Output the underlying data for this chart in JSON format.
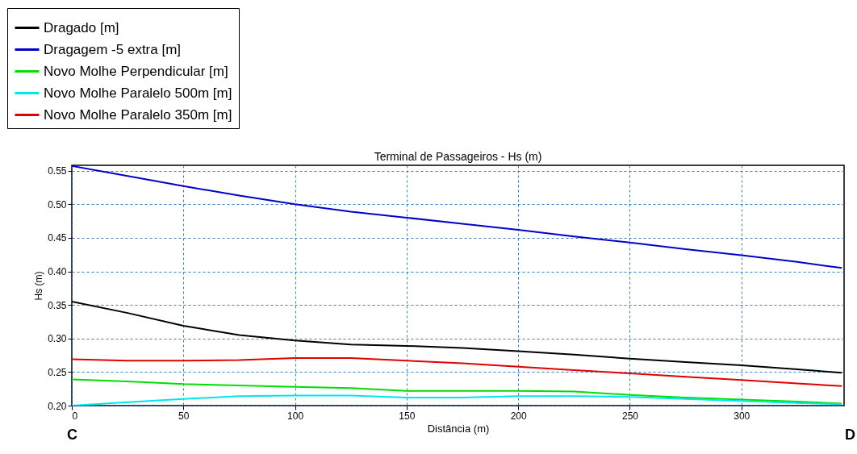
{
  "chart_data": {
    "type": "line",
    "title": "Terminal de Passageiros - Hs (m)",
    "xlabel": "Distância (m)",
    "ylabel": "Hs (m)",
    "x": [
      0,
      25,
      50,
      75,
      100,
      125,
      150,
      175,
      200,
      225,
      250,
      275,
      300,
      325,
      345
    ],
    "series": [
      {
        "name": "Dragado [m]",
        "color": "#000000",
        "values": [
          0.355,
          0.338,
          0.319,
          0.305,
          0.297,
          0.291,
          0.289,
          0.286,
          0.281,
          0.276,
          0.27,
          0.265,
          0.26,
          0.254,
          0.249
        ]
      },
      {
        "name": "Dragagem -5 extra [m]",
        "color": "#0000cc",
        "values": [
          0.557,
          0.542,
          0.527,
          0.513,
          0.5,
          0.489,
          0.48,
          0.471,
          0.462,
          0.452,
          0.443,
          0.433,
          0.424,
          0.414,
          0.405
        ]
      },
      {
        "name": "Novo Molhe Perpendicular [m]",
        "color": "#00dd00",
        "values": [
          0.239,
          0.236,
          0.232,
          0.23,
          0.228,
          0.226,
          0.222,
          0.222,
          0.222,
          0.221,
          0.216,
          0.212,
          0.209,
          0.206,
          0.203
        ]
      },
      {
        "name": "Novo Molhe Paralelo 500m [m]",
        "color": "#00e5ee",
        "values": [
          0.2,
          0.205,
          0.21,
          0.214,
          0.215,
          0.215,
          0.212,
          0.212,
          0.214,
          0.214,
          0.213,
          0.21,
          0.207,
          0.204,
          0.202
        ]
      },
      {
        "name": "Novo Molhe Paralelo 350m [m]",
        "color": "#e00000",
        "values": [
          0.269,
          0.267,
          0.267,
          0.268,
          0.271,
          0.271,
          0.267,
          0.263,
          0.258,
          0.253,
          0.248,
          0.243,
          0.238,
          0.233,
          0.229
        ]
      }
    ],
    "xlim": [
      0,
      346
    ],
    "xticks": [
      0,
      50,
      100,
      150,
      200,
      250,
      300
    ],
    "ylim": [
      0.2,
      0.558
    ],
    "yticks": [
      {
        "value": 0.2,
        "label": "0.20"
      },
      {
        "value": 0.25,
        "label": "0.25"
      },
      {
        "value": 0.3,
        "label": "0.30"
      },
      {
        "value": 0.35,
        "label": "0.35"
      },
      {
        "value": 0.4,
        "label": "0.40"
      },
      {
        "value": 0.45,
        "label": "0.45"
      },
      {
        "value": 0.5,
        "label": "0.50"
      },
      {
        "value": 0.55,
        "label": "0.55"
      }
    ],
    "grid": true,
    "legend": "top left",
    "marker": "none",
    "line_style": "solid",
    "annotations": [
      "C",
      "D"
    ]
  }
}
